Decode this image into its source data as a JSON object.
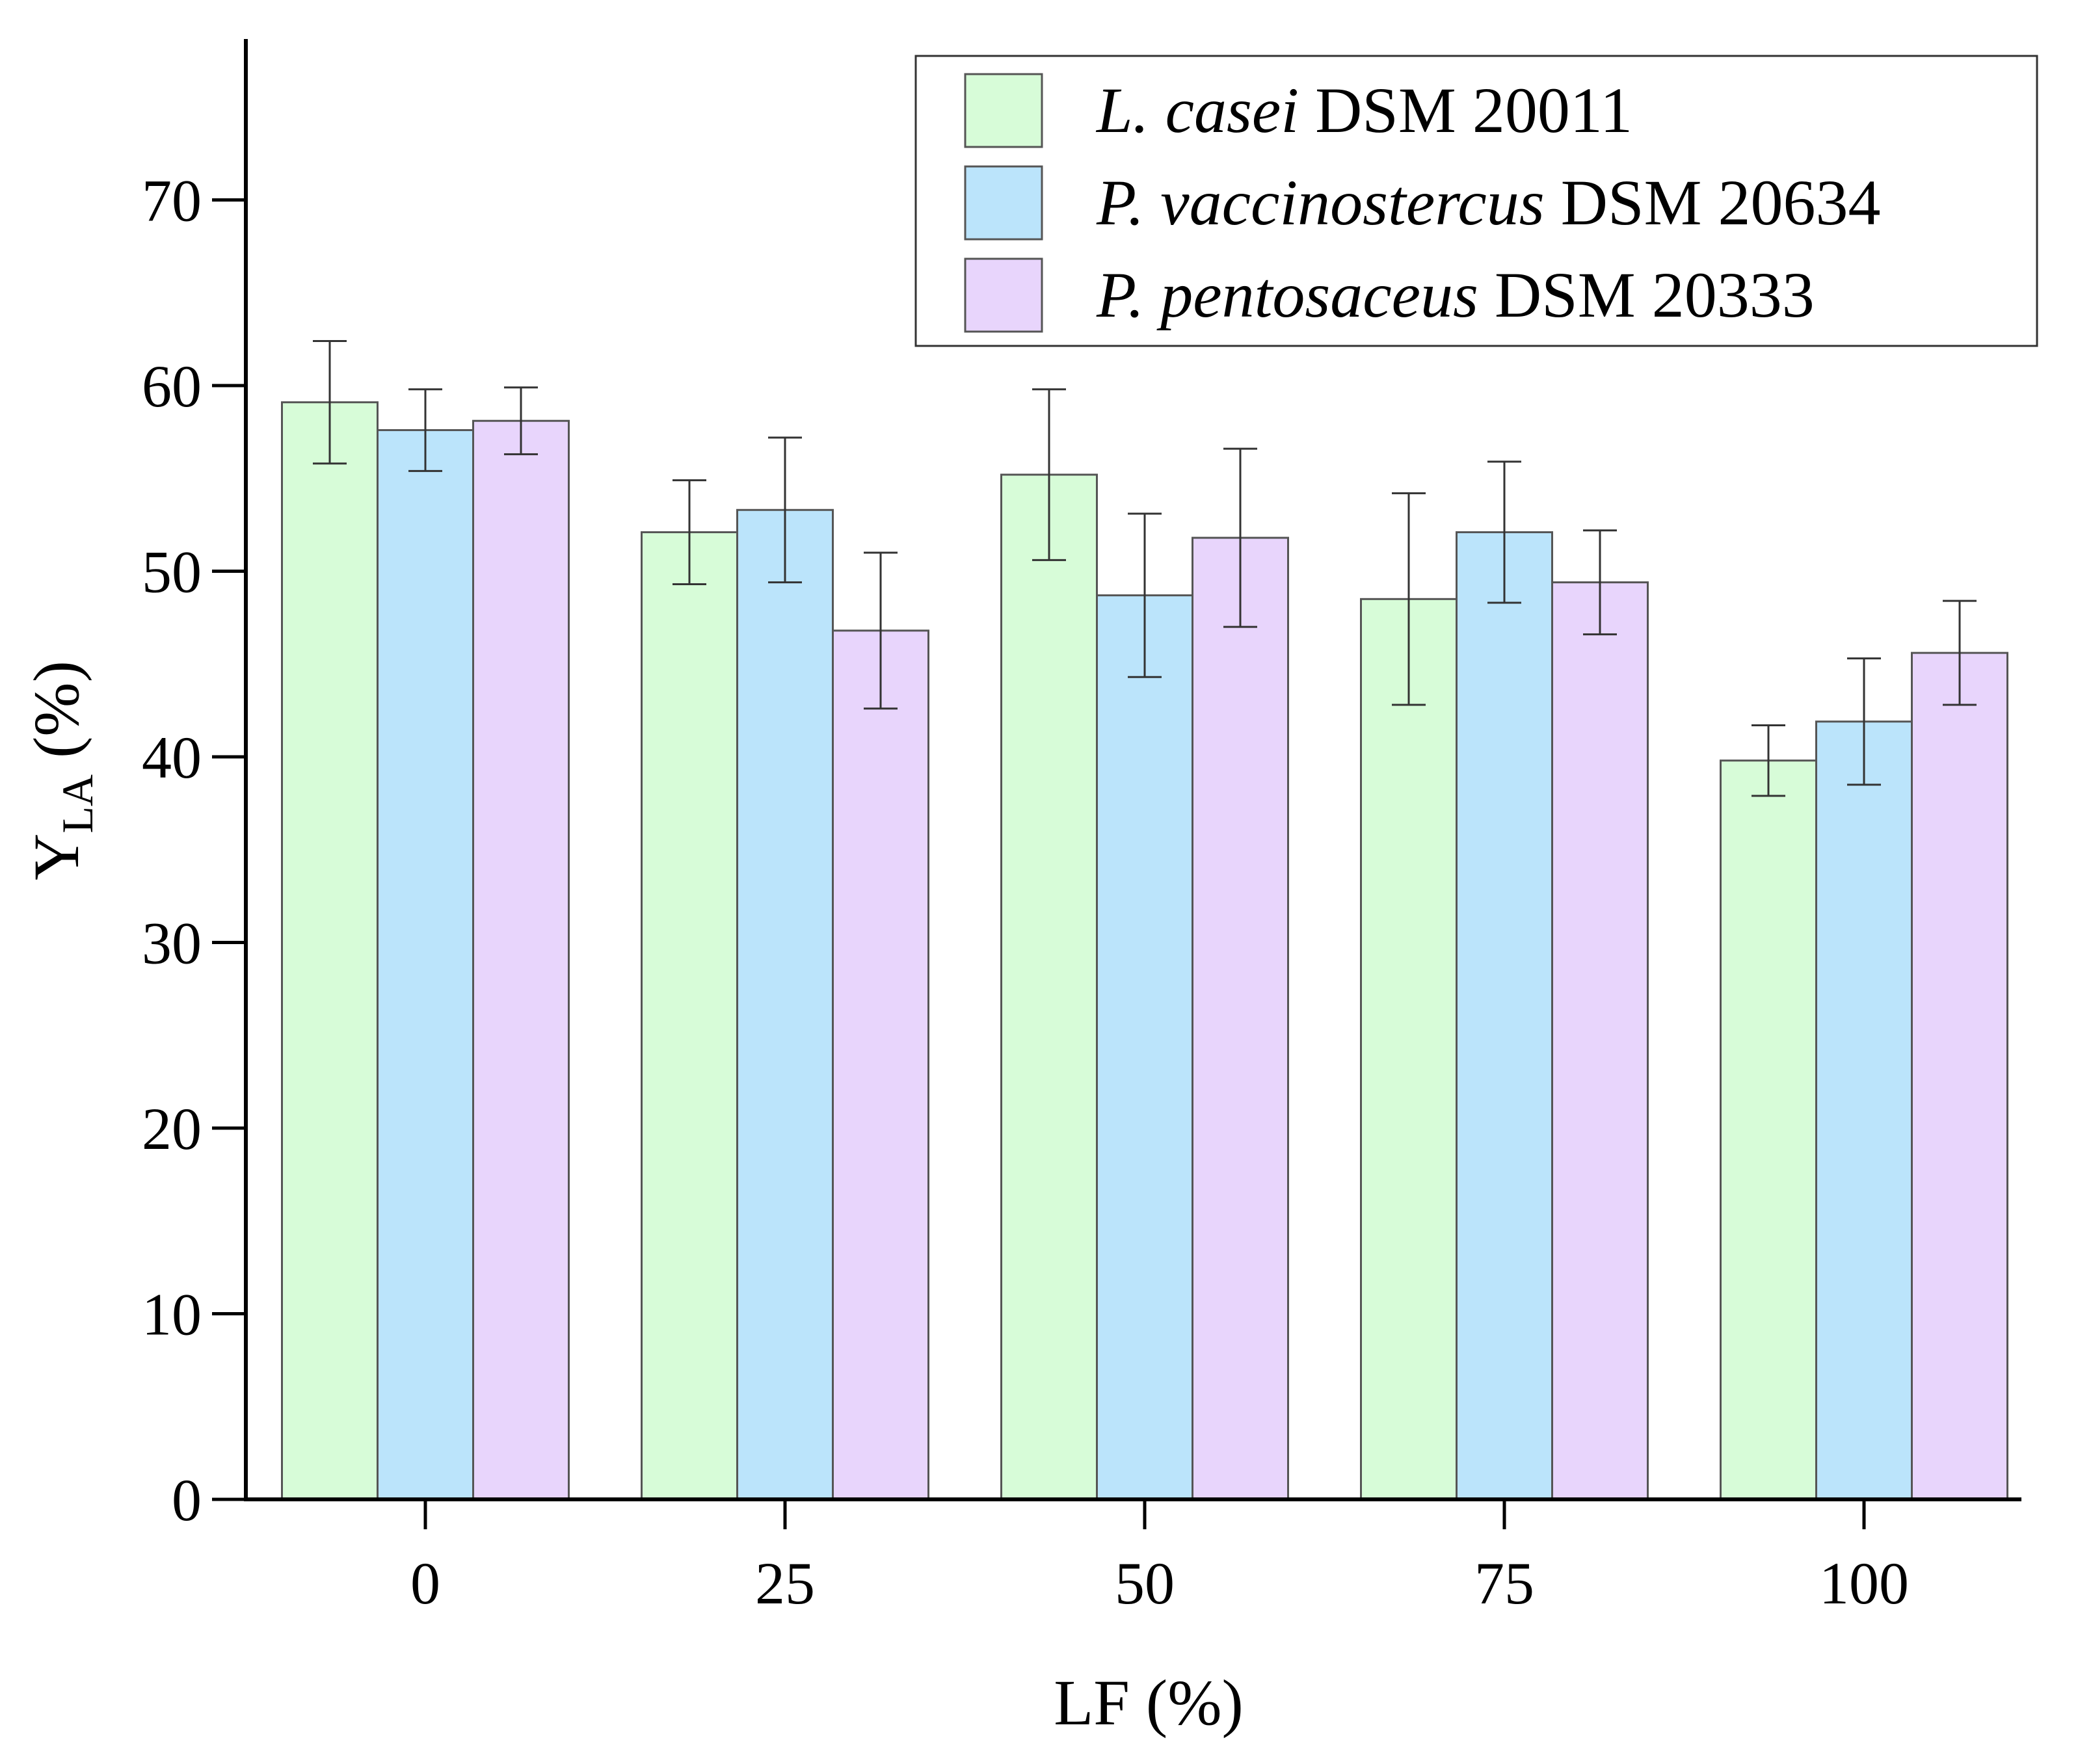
{
  "chart_data": {
    "type": "bar",
    "title": "",
    "xlabel": "LF (%)",
    "ylabel": {
      "main": "Y",
      "subscript": "LA",
      "suffix": " (%)"
    },
    "ylim": [
      0,
      79
    ],
    "yticks": [
      0,
      10,
      20,
      30,
      40,
      50,
      60,
      70
    ],
    "categories": [
      "0",
      "25",
      "50",
      "75",
      "100"
    ],
    "legend_position": "top-right",
    "series": [
      {
        "name": "L. casei DSM 20011",
        "name_italic": "L. casei",
        "name_rest": " DSM 20011",
        "color": "#d7fcd8",
        "values": [
          59.1,
          52.1,
          55.2,
          48.5,
          39.8
        ],
        "errors": [
          3.3,
          2.8,
          4.6,
          5.7,
          1.9
        ]
      },
      {
        "name": "P. vaccinostercus DSM 20634",
        "name_italic": "P. vaccinostercus",
        "name_rest": " DSM 20634",
        "color": "#bbe4fb",
        "values": [
          57.6,
          53.3,
          48.7,
          52.1,
          41.9
        ],
        "errors": [
          2.2,
          3.9,
          4.4,
          3.8,
          3.4
        ]
      },
      {
        "name": "P. pentosaceus DSM 20333",
        "name_italic": "P. pentosaceus",
        "name_rest": " DSM 20333",
        "color": "#e8d5fc",
        "values": [
          58.1,
          46.8,
          51.8,
          49.4,
          45.6
        ],
        "errors": [
          1.8,
          4.2,
          4.8,
          2.8,
          2.8
        ]
      }
    ]
  }
}
